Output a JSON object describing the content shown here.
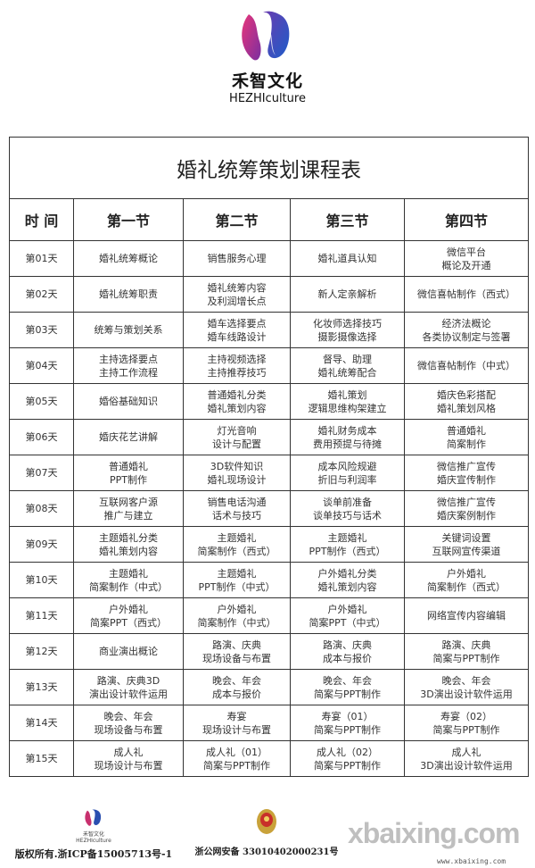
{
  "brand": {
    "name_cn": "禾智文化",
    "name_en": "HEZHIculture"
  },
  "table": {
    "title": "婚礼统筹策划课程表",
    "headers": [
      "时 间",
      "第一节",
      "第二节",
      "第三节",
      "第四节"
    ],
    "rows": [
      {
        "day": "第01天",
        "cells": [
          [
            "婚礼统筹概论"
          ],
          [
            "销售服务心理"
          ],
          [
            "婚礼道具认知"
          ],
          [
            "微信平台",
            "概论及开通"
          ]
        ]
      },
      {
        "day": "第02天",
        "cells": [
          [
            "婚礼统筹职责"
          ],
          [
            "婚礼统筹内容",
            "及利润增长点"
          ],
          [
            "新人定亲解析"
          ],
          [
            "微信喜帖制作（西式）"
          ]
        ]
      },
      {
        "day": "第03天",
        "cells": [
          [
            "统筹与策划关系"
          ],
          [
            "婚车选择要点",
            "婚车线路设计"
          ],
          [
            "化妆师选择技巧",
            "摄影摄像选择"
          ],
          [
            "经济法概论",
            "各类协议制定与签署"
          ]
        ]
      },
      {
        "day": "第04天",
        "cells": [
          [
            "主持选择要点",
            "主持工作流程"
          ],
          [
            "主持视频选择",
            "主持推荐技巧"
          ],
          [
            "督导、助理",
            "婚礼统筹配合"
          ],
          [
            "微信喜帖制作（中式）"
          ]
        ]
      },
      {
        "day": "第05天",
        "cells": [
          [
            "婚俗基础知识"
          ],
          [
            "普通婚礼分类",
            "婚礼策划内容"
          ],
          [
            "婚礼策划",
            "逻辑思维构架建立"
          ],
          [
            "婚庆色彩搭配",
            "婚礼策划风格"
          ]
        ]
      },
      {
        "day": "第06天",
        "cells": [
          [
            "婚庆花艺讲解"
          ],
          [
            "灯光音响",
            "设计与配置"
          ],
          [
            "婚礼财务成本",
            "费用预提与待摊"
          ],
          [
            "普通婚礼",
            "简案制作"
          ]
        ]
      },
      {
        "day": "第07天",
        "cells": [
          [
            "普通婚礼",
            "PPT制作"
          ],
          [
            "3D软件知识",
            "婚礼现场设计"
          ],
          [
            "成本风险规避",
            "折旧与利润率"
          ],
          [
            "微信推广宣传",
            "婚庆宣传制作"
          ]
        ]
      },
      {
        "day": "第08天",
        "cells": [
          [
            "互联网客户源",
            "推广与建立"
          ],
          [
            "销售电话沟通",
            "话术与技巧"
          ],
          [
            "谈单前准备",
            "谈单技巧与话术"
          ],
          [
            "微信推广宣传",
            "婚庆案例制作"
          ]
        ]
      },
      {
        "day": "第09天",
        "cells": [
          [
            "主题婚礼分类",
            "婚礼策划内容"
          ],
          [
            "主题婚礼",
            "简案制作（西式）"
          ],
          [
            "主题婚礼",
            "PPT制作（西式）"
          ],
          [
            "关键词设置",
            "互联网宣传渠道"
          ]
        ]
      },
      {
        "day": "第10天",
        "cells": [
          [
            "主题婚礼",
            "简案制作（中式）"
          ],
          [
            "主题婚礼",
            "PPT制作（中式）"
          ],
          [
            "户外婚礼分类",
            "婚礼策划内容"
          ],
          [
            "户外婚礼",
            "简案制作（西式）"
          ]
        ]
      },
      {
        "day": "第11天",
        "cells": [
          [
            "户外婚礼",
            "简案PPT（西式）"
          ],
          [
            "户外婚礼",
            "简案制作（中式）"
          ],
          [
            "户外婚礼",
            "简案PPT（中式）"
          ],
          [
            "网络宣传内容编辑"
          ]
        ]
      },
      {
        "day": "第12天",
        "cells": [
          [
            "商业演出概论"
          ],
          [
            "路演、庆典",
            "现场设备与布置"
          ],
          [
            "路演、庆典",
            "成本与报价"
          ],
          [
            "路演、庆典",
            "简案与PPT制作"
          ]
        ]
      },
      {
        "day": "第13天",
        "cells": [
          [
            "路演、庆典3D",
            "演出设计软件运用"
          ],
          [
            "晚会、年会",
            "成本与报价"
          ],
          [
            "晚会、年会",
            "简案与PPT制作"
          ],
          [
            "晚会、年会",
            "3D演出设计软件运用"
          ]
        ]
      },
      {
        "day": "第14天",
        "cells": [
          [
            "晚会、年会",
            "现场设备与布置"
          ],
          [
            "寿宴",
            "现场设计与布置"
          ],
          [
            "寿宴（01）",
            "简案与PPT制作"
          ],
          [
            "寿宴（02）",
            "简案与PPT制作"
          ]
        ]
      },
      {
        "day": "第15天",
        "cells": [
          [
            "成人礼",
            "现场设计与布置"
          ],
          [
            "成人礼（01）",
            "简案与PPT制作"
          ],
          [
            "成人礼（02）",
            "简案与PPT制作"
          ],
          [
            "成人礼",
            "3D演出设计软件运用"
          ]
        ]
      }
    ]
  },
  "footer": {
    "copyright": "版权所有.浙ICP备15005713号-1",
    "police_record": "浙公网安备 33010402000231号",
    "watermark": "xbaixing.com",
    "watermark_url": "www.xbaixing.com"
  },
  "colors": {
    "logo_pink": "#e0307a",
    "logo_blue": "#2a4fb0",
    "logo_purple": "#7a3aa0"
  }
}
